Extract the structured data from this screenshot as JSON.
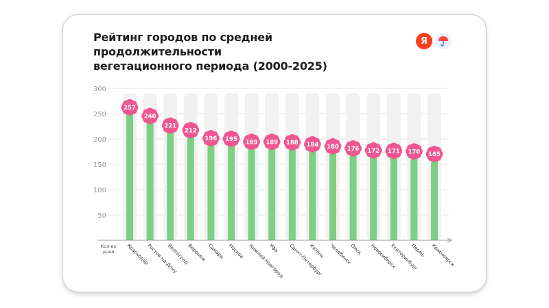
{
  "header": {
    "title_line1": "Рейтинг городов по средней продолжительности",
    "title_line2": "вегетационного периода (2000-2025)",
    "logo_letter": "Я"
  },
  "chart_data": {
    "type": "bar",
    "title": "Рейтинг городов по средней продолжительности вегетационного периода (2000-2025)",
    "ylabel": "Кол-во дней",
    "xlabel": "",
    "ylim": [
      0,
      300
    ],
    "yticks": [
      50,
      100,
      150,
      200,
      250,
      300
    ],
    "grid": true,
    "categories": [
      "Краснодар",
      "Ростов-на-Дону",
      "Волгоград",
      "Воронеж",
      "Самара",
      "Москва",
      "Нижний Новгород",
      "Уфа",
      "Санкт-Петербург",
      "Казань",
      "Челябинск",
      "Омск",
      "Новосибирск",
      "Екатеринбург",
      "Пермь",
      "Красноярск"
    ],
    "values": [
      257,
      240,
      221,
      212,
      196,
      195,
      189,
      189,
      188,
      184,
      180,
      176,
      172,
      171,
      170,
      165
    ],
    "colors": {
      "bar": "#7ccf83",
      "background_bar": "#f1f1f1",
      "label": "#ee5792",
      "grid": "#e3e3e3",
      "axis": "#9a9a9a"
    }
  }
}
